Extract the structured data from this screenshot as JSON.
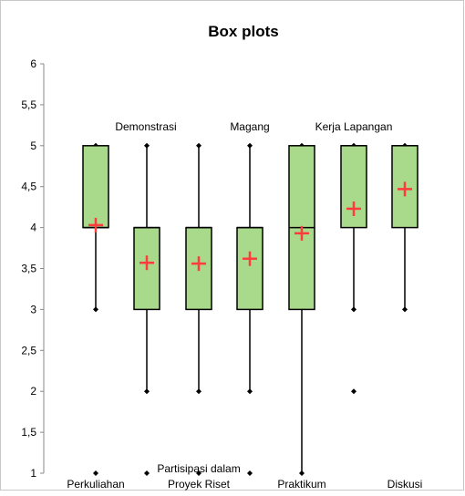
{
  "chart_data": {
    "type": "box",
    "title": "Box plots",
    "xlabel": "",
    "ylabel": "",
    "ylim": [
      1,
      6
    ],
    "ytick_labels": [
      "1",
      "1,5",
      "2",
      "2,5",
      "3",
      "3,5",
      "4",
      "4,5",
      "5",
      "5,5",
      "6"
    ],
    "grid": false,
    "legend": "none",
    "colors": {
      "box_fill": "#a9d98b",
      "box_stroke": "#000000",
      "mean_marker": "#ff3b3b",
      "outlier": "#000000"
    },
    "series": [
      {
        "label": "Perkuliahan",
        "min": 3,
        "q1": 4,
        "median": 4,
        "q3": 5,
        "max": 5,
        "mean": 4.03,
        "outliers": [
          1
        ]
      },
      {
        "label": "Demonstrasi",
        "min": 2,
        "q1": 3,
        "median": 4,
        "q3": 4,
        "max": 5,
        "mean": 3.57,
        "outliers": [
          1
        ]
      },
      {
        "label": "Proyek Riset",
        "min": 2,
        "q1": 3,
        "median": 4,
        "q3": 4,
        "max": 5,
        "mean": 3.56,
        "outliers": [
          1
        ]
      },
      {
        "label": "Magang",
        "min": 2,
        "q1": 3,
        "median": 4,
        "q3": 4,
        "max": 5,
        "mean": 3.62,
        "outliers": [
          1
        ]
      },
      {
        "label": "Partisipasi dalam Praktikum",
        "min": 1,
        "q1": 3,
        "median": 4,
        "q3": 5,
        "max": 5,
        "mean": 3.93,
        "outliers": []
      },
      {
        "label": "Kerja Lapangan",
        "min": 3,
        "q1": 4,
        "median": 5,
        "q3": 5,
        "max": 5,
        "mean": 4.23,
        "outliers": [
          2
        ]
      },
      {
        "label": "Diskusi",
        "min": 3,
        "q1": 4,
        "median": 5,
        "q3": 5,
        "max": 5,
        "mean": 4.47,
        "outliers": []
      }
    ],
    "category_labels": {
      "perkuliahan": "Perkuliahan",
      "demonstrasi": "Demonstrasi",
      "proyek_riset": "Proyek Riset",
      "magang": "Magang",
      "partisipasi_dalam": "Partisipasi dalam",
      "praktikum": "Praktikum",
      "kerja_lapangan": "Kerja Lapangan",
      "diskusi": "Diskusi"
    }
  }
}
